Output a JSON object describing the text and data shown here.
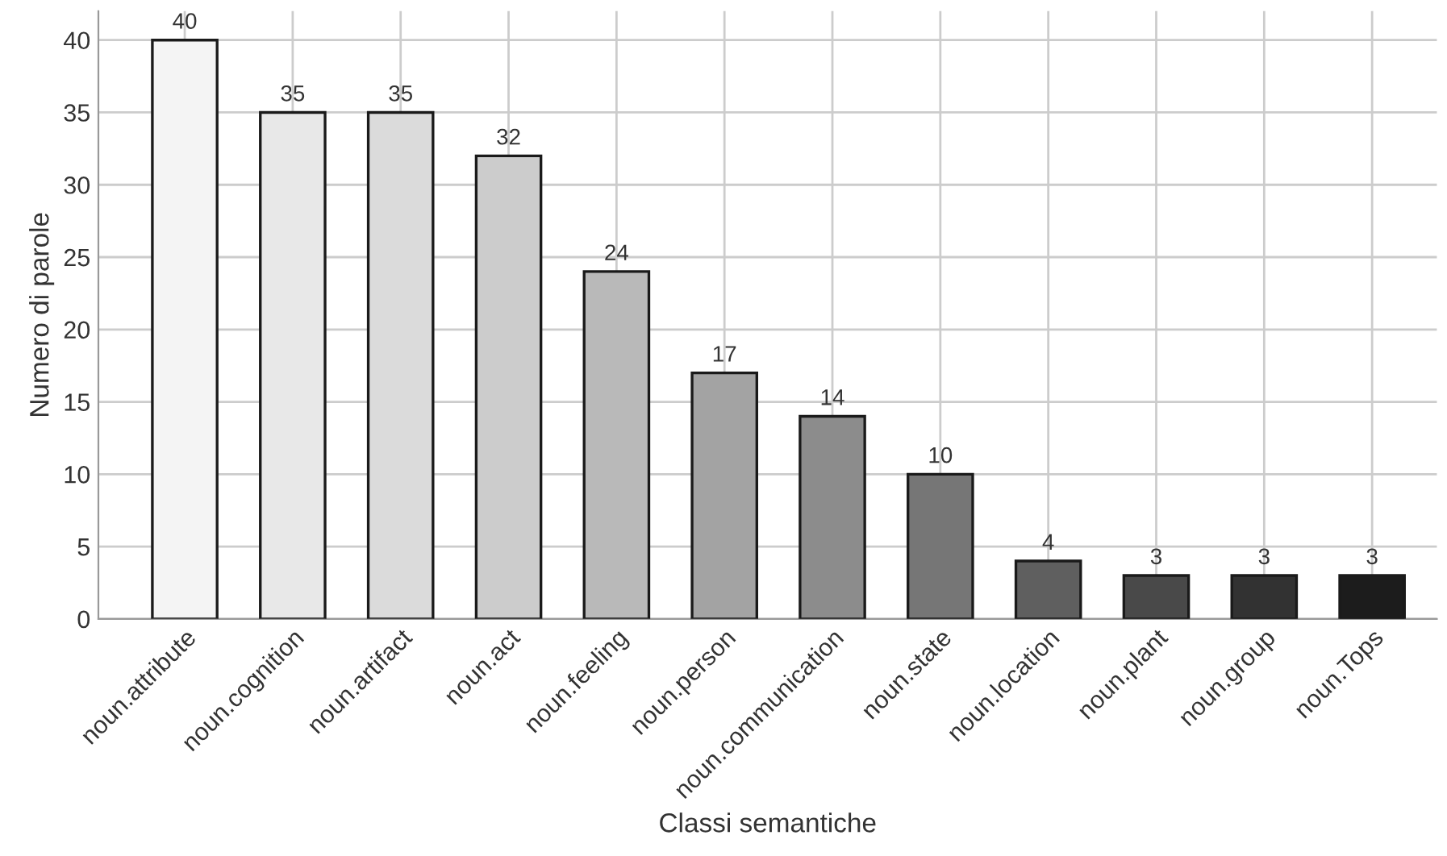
{
  "chart_data": {
    "type": "bar",
    "xlabel": "Classi semantiche",
    "ylabel": "Numero di parole",
    "categories": [
      "noun.attribute",
      "noun.cognition",
      "noun.artifact",
      "noun.act",
      "noun.feeling",
      "noun.person",
      "noun.communication",
      "noun.state",
      "noun.location",
      "noun.plant",
      "noun.group",
      "noun.Tops"
    ],
    "values": [
      40,
      35,
      35,
      32,
      24,
      17,
      14,
      10,
      4,
      3,
      3,
      3
    ],
    "colors": [
      "#f4f4f4",
      "#e8e8e8",
      "#dbdbdb",
      "#cccccc",
      "#b9b9b9",
      "#a3a3a3",
      "#8c8c8c",
      "#767676",
      "#5f5f5f",
      "#494949",
      "#323232",
      "#1c1c1c"
    ],
    "ylim": [
      0,
      42
    ],
    "yticks": [
      0,
      5,
      10,
      15,
      20,
      25,
      30,
      35,
      40
    ],
    "grid": true,
    "data_labels": true
  }
}
